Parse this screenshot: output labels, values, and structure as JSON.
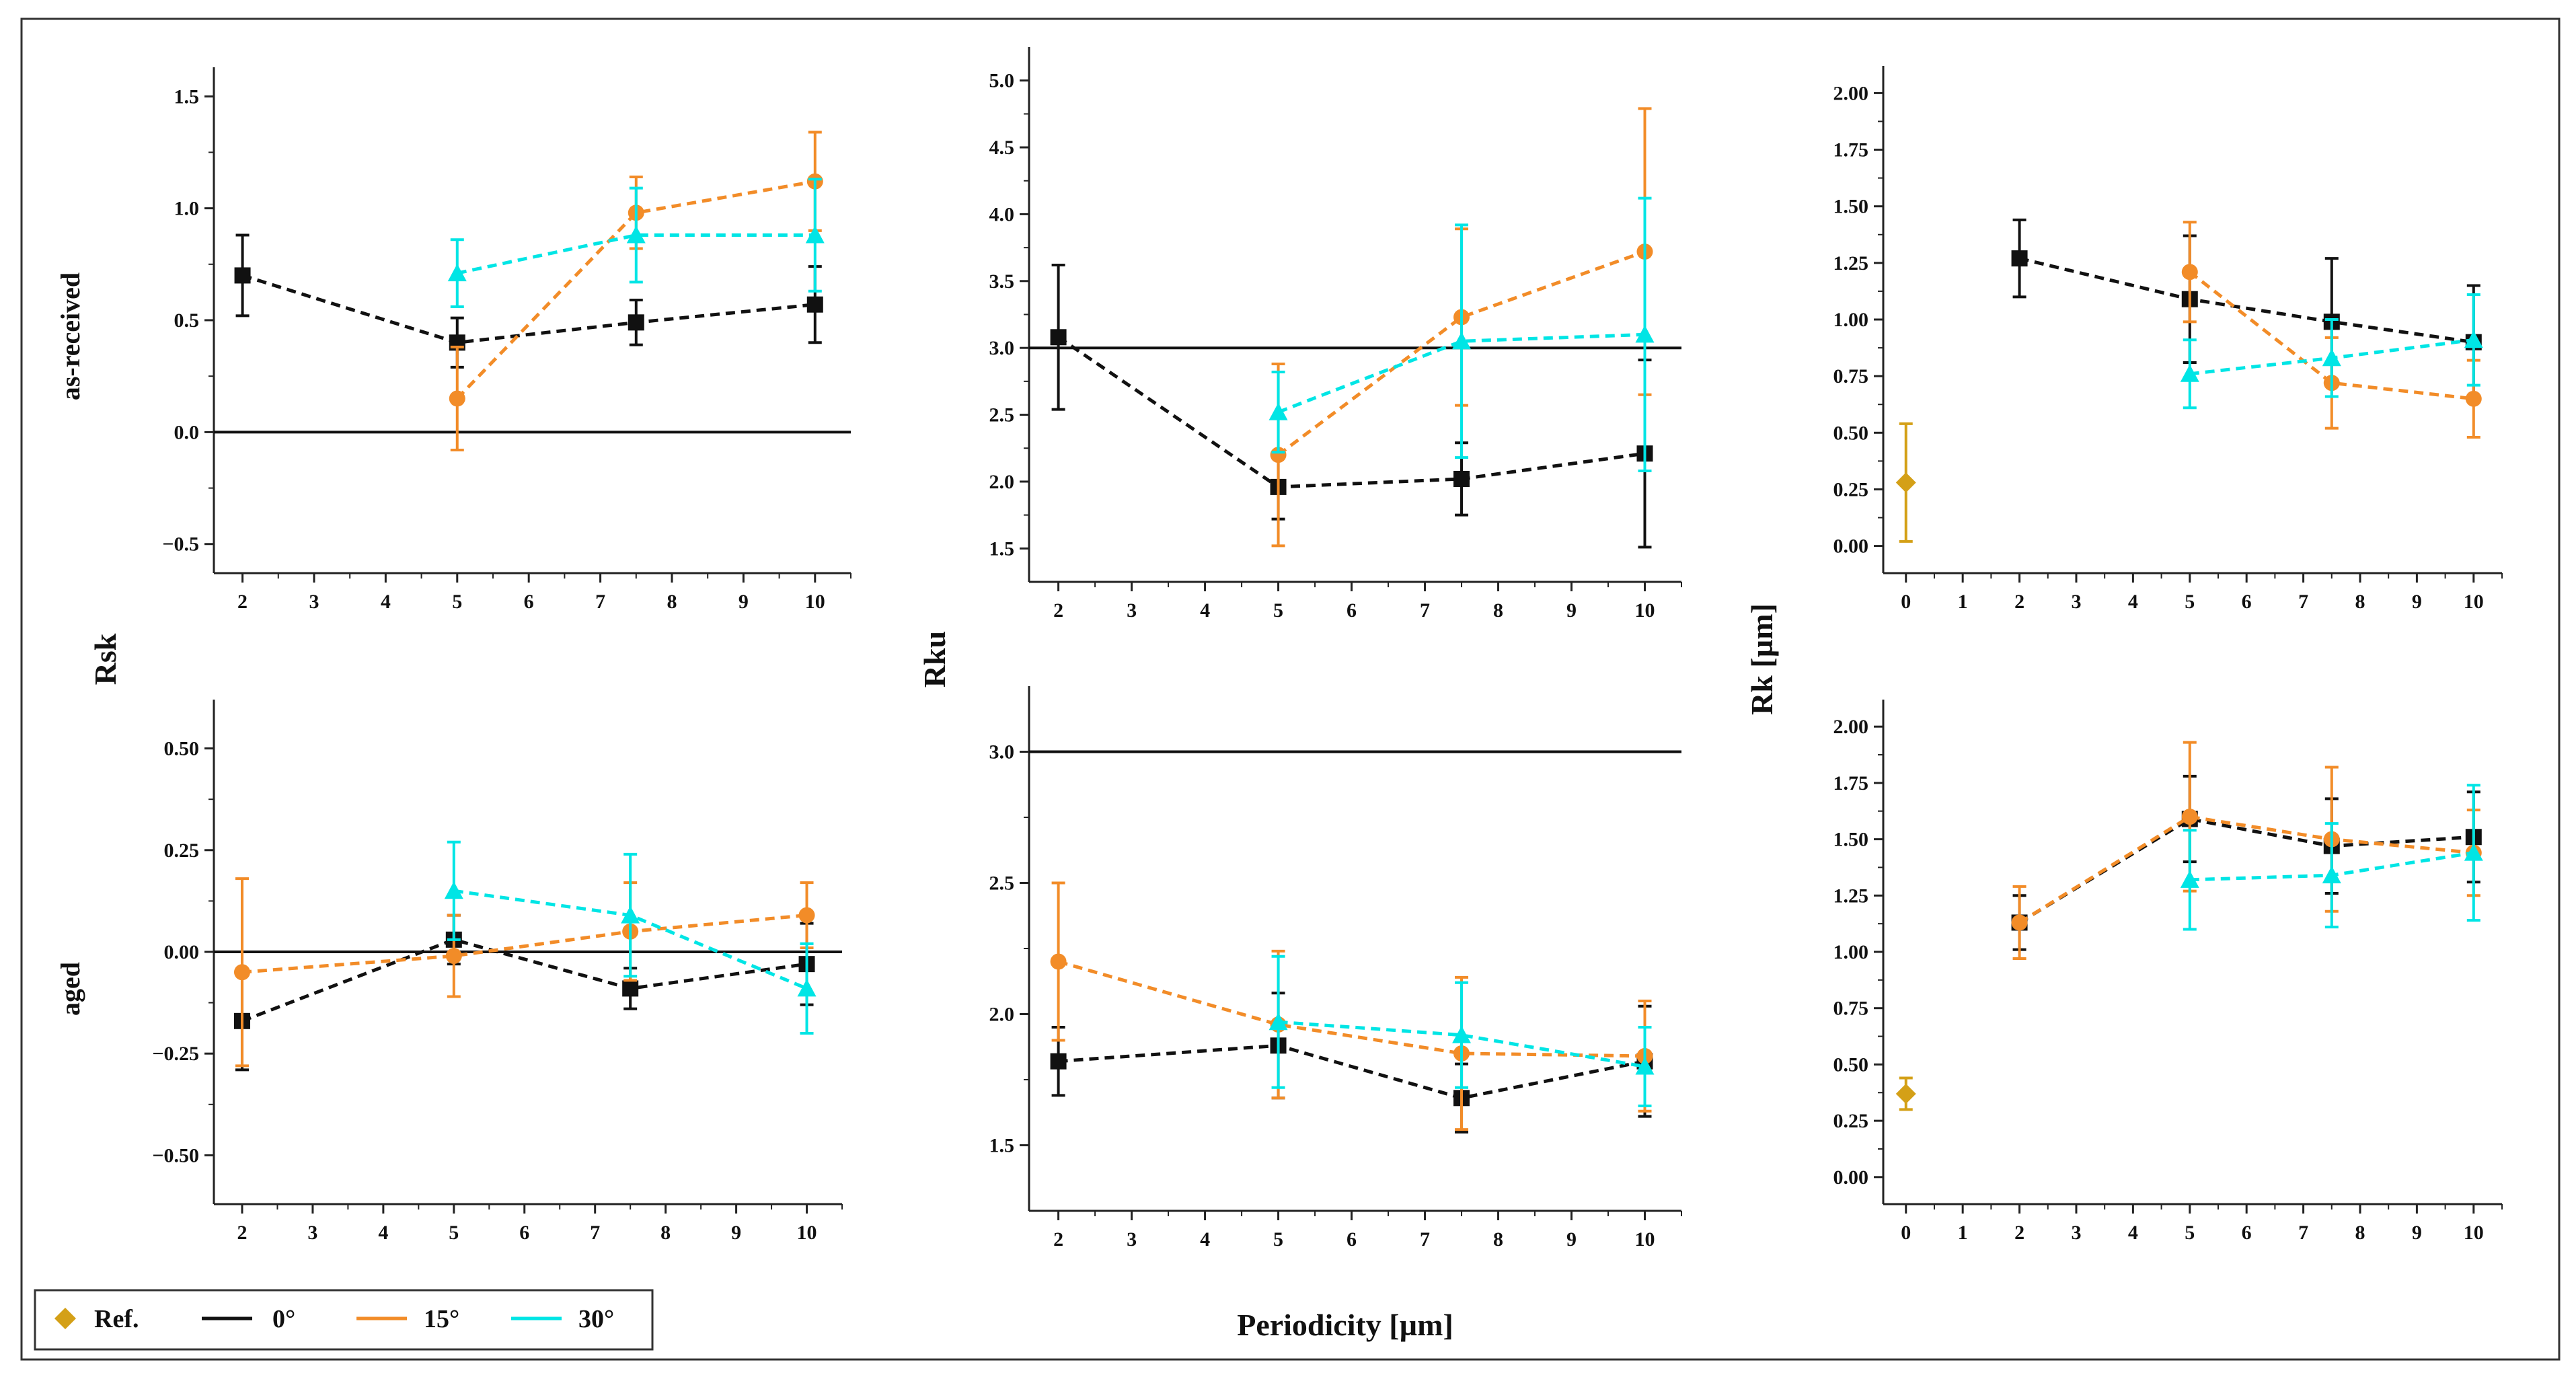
{
  "figure": {
    "shared_xlabel": "Periodicity [µm]",
    "row_labels": [
      "as-received",
      "aged"
    ],
    "column_ylabels": [
      "Rsk",
      "Rku",
      "Rk [µm]"
    ]
  },
  "colors": {
    "ref": "#D4A017",
    "0°": "#111111",
    "15°": "#F28C28",
    "30°": "#00E5E5"
  },
  "legend": {
    "entries": [
      {
        "key": "ref",
        "label": "Ref.",
        "marker": "diamond"
      },
      {
        "key": "0°",
        "label": "0°",
        "marker": "line"
      },
      {
        "key": "15°",
        "label": "15°",
        "marker": "line"
      },
      {
        "key": "30°",
        "label": "30°",
        "marker": "line"
      }
    ]
  },
  "chart_data": [
    {
      "id": "rsk-as-received",
      "type": "line",
      "xlim": [
        1.6,
        10.5
      ],
      "ylim": [
        -0.63,
        1.63
      ],
      "xticks": [
        2,
        3,
        4,
        5,
        6,
        7,
        8,
        9,
        10
      ],
      "xtick_labels": [
        "2",
        "3",
        "4",
        "5",
        "6",
        "7",
        "8",
        "9",
        "10"
      ],
      "yticks": [
        -0.5,
        0.0,
        0.5,
        1.0,
        1.5
      ],
      "ytick_labels": [
        "−0.5",
        "0.0",
        "0.5",
        "1.0",
        "1.5"
      ],
      "reference_line": 0.0,
      "series": [
        {
          "name": "0°",
          "marker": "square",
          "x": [
            2,
            5,
            7.5,
            10
          ],
          "y": [
            0.7,
            0.4,
            0.49,
            0.57
          ],
          "err": [
            0.18,
            0.11,
            0.1,
            0.17
          ]
        },
        {
          "name": "15°",
          "marker": "circle",
          "x": [
            5,
            7.5,
            10
          ],
          "y": [
            0.15,
            0.98,
            1.12
          ],
          "err": [
            0.23,
            0.16,
            0.22
          ]
        },
        {
          "name": "30°",
          "marker": "triangle",
          "x": [
            5,
            7.5,
            10
          ],
          "y": [
            0.71,
            0.88,
            0.88
          ],
          "err": [
            0.15,
            0.21,
            0.25
          ]
        }
      ]
    },
    {
      "id": "rku-as-received",
      "type": "line",
      "xlim": [
        1.6,
        10.5
      ],
      "ylim": [
        1.25,
        5.25
      ],
      "xticks": [
        2,
        3,
        4,
        5,
        6,
        7,
        8,
        9,
        10
      ],
      "xtick_labels": [
        "2",
        "3",
        "4",
        "5",
        "6",
        "7",
        "8",
        "9",
        "10"
      ],
      "yticks": [
        1.5,
        2.0,
        2.5,
        3.0,
        3.5,
        4.0,
        4.5,
        5.0
      ],
      "ytick_labels": [
        "1.5",
        "2.0",
        "2.5",
        "3.0",
        "3.5",
        "4.0",
        "4.5",
        "5.0"
      ],
      "reference_line": 3.0,
      "series": [
        {
          "name": "0°",
          "marker": "square",
          "x": [
            2,
            5,
            7.5,
            10
          ],
          "y": [
            3.08,
            1.96,
            2.02,
            2.21
          ],
          "err": [
            0.54,
            0.24,
            0.27,
            0.7
          ]
        },
        {
          "name": "15°",
          "marker": "circle",
          "x": [
            5,
            7.5,
            10
          ],
          "y": [
            2.2,
            3.23,
            3.72
          ],
          "err": [
            0.68,
            0.66,
            1.07
          ]
        },
        {
          "name": "30°",
          "marker": "triangle",
          "x": [
            5,
            7.5,
            10
          ],
          "y": [
            2.52,
            3.05,
            3.1
          ],
          "err": [
            0.3,
            0.87,
            1.02
          ]
        }
      ]
    },
    {
      "id": "rk-as-received",
      "type": "line",
      "xlim": [
        -0.4,
        10.5
      ],
      "ylim": [
        -0.12,
        2.12
      ],
      "xticks": [
        0,
        1,
        2,
        3,
        4,
        5,
        6,
        7,
        8,
        9,
        10
      ],
      "xtick_labels": [
        "0",
        "1",
        "2",
        "3",
        "4",
        "5",
        "6",
        "7",
        "8",
        "9",
        "10"
      ],
      "yticks": [
        0.0,
        0.25,
        0.5,
        0.75,
        1.0,
        1.25,
        1.5,
        1.75,
        2.0
      ],
      "ytick_labels": [
        "0.00",
        "0.25",
        "0.50",
        "0.75",
        "1.00",
        "1.25",
        "1.50",
        "1.75",
        "2.00"
      ],
      "series": [
        {
          "name": "Ref.",
          "marker": "diamond",
          "x": [
            0
          ],
          "y": [
            0.28
          ],
          "err": [
            0.26
          ]
        },
        {
          "name": "0°",
          "marker": "square",
          "x": [
            2,
            5,
            7.5,
            10
          ],
          "y": [
            1.27,
            1.09,
            0.99,
            0.9
          ],
          "err": [
            0.17,
            0.28,
            0.28,
            0.25
          ]
        },
        {
          "name": "15°",
          "marker": "circle",
          "x": [
            5,
            7.5,
            10
          ],
          "y": [
            1.21,
            0.72,
            0.65
          ],
          "err": [
            0.22,
            0.2,
            0.17
          ]
        },
        {
          "name": "30°",
          "marker": "triangle",
          "x": [
            5,
            7.5,
            10
          ],
          "y": [
            0.76,
            0.83,
            0.91
          ],
          "err": [
            0.15,
            0.17,
            0.2
          ]
        }
      ]
    },
    {
      "id": "rsk-aged",
      "type": "line",
      "xlim": [
        1.6,
        10.5
      ],
      "ylim": [
        -0.62,
        0.62
      ],
      "xticks": [
        2,
        3,
        4,
        5,
        6,
        7,
        8,
        9,
        10
      ],
      "xtick_labels": [
        "2",
        "3",
        "4",
        "5",
        "6",
        "7",
        "8",
        "9",
        "10"
      ],
      "yticks": [
        -0.5,
        -0.25,
        0.0,
        0.25,
        0.5
      ],
      "ytick_labels": [
        "−0.50",
        "−0.25",
        "0.00",
        "0.25",
        "0.50"
      ],
      "reference_line": 0.0,
      "series": [
        {
          "name": "0°",
          "marker": "square",
          "x": [
            2,
            5,
            7.5,
            10
          ],
          "y": [
            -0.17,
            0.03,
            -0.09,
            -0.03
          ],
          "err": [
            0.12,
            0.06,
            0.05,
            0.1
          ]
        },
        {
          "name": "15°",
          "marker": "circle",
          "x": [
            2,
            5,
            7.5,
            10
          ],
          "y": [
            -0.05,
            -0.01,
            0.05,
            0.09
          ],
          "err": [
            0.23,
            0.1,
            0.12,
            0.08
          ]
        },
        {
          "name": "30°",
          "marker": "triangle",
          "x": [
            5,
            7.5,
            10
          ],
          "y": [
            0.15,
            0.09,
            -0.09
          ],
          "err": [
            0.12,
            0.15,
            0.11
          ]
        }
      ]
    },
    {
      "id": "rku-aged",
      "type": "line",
      "xlim": [
        1.6,
        10.5
      ],
      "ylim": [
        1.25,
        3.25
      ],
      "xticks": [
        2,
        3,
        4,
        5,
        6,
        7,
        8,
        9,
        10
      ],
      "xtick_labels": [
        "2",
        "3",
        "4",
        "5",
        "6",
        "7",
        "8",
        "9",
        "10"
      ],
      "yticks": [
        1.5,
        2.0,
        2.5,
        3.0
      ],
      "ytick_labels": [
        "1.5",
        "2.0",
        "2.5",
        "3.0"
      ],
      "reference_line": 3.0,
      "series": [
        {
          "name": "0°",
          "marker": "square",
          "x": [
            2,
            5,
            7.5,
            10
          ],
          "y": [
            1.82,
            1.88,
            1.68,
            1.82
          ],
          "err": [
            0.13,
            0.2,
            0.13,
            0.21
          ]
        },
        {
          "name": "15°",
          "marker": "circle",
          "x": [
            2,
            5,
            7.5,
            10
          ],
          "y": [
            2.2,
            1.96,
            1.85,
            1.84
          ],
          "err": [
            0.3,
            0.28,
            0.29,
            0.21
          ]
        },
        {
          "name": "30°",
          "marker": "triangle",
          "x": [
            5,
            7.5,
            10
          ],
          "y": [
            1.97,
            1.92,
            1.8
          ],
          "err": [
            0.25,
            0.2,
            0.15
          ]
        }
      ]
    },
    {
      "id": "rk-aged",
      "type": "line",
      "xlim": [
        -0.4,
        10.5
      ],
      "ylim": [
        -0.12,
        2.12
      ],
      "xticks": [
        0,
        1,
        2,
        3,
        4,
        5,
        6,
        7,
        8,
        9,
        10
      ],
      "xtick_labels": [
        "0",
        "1",
        "2",
        "3",
        "4",
        "5",
        "6",
        "7",
        "8",
        "9",
        "10"
      ],
      "yticks": [
        0.0,
        0.25,
        0.5,
        0.75,
        1.0,
        1.25,
        1.5,
        1.75,
        2.0
      ],
      "ytick_labels": [
        "0.00",
        "0.25",
        "0.50",
        "0.75",
        "1.00",
        "1.25",
        "1.50",
        "1.75",
        "2.00"
      ],
      "series": [
        {
          "name": "Ref.",
          "marker": "diamond",
          "x": [
            0
          ],
          "y": [
            0.37
          ],
          "err": [
            0.07
          ]
        },
        {
          "name": "0°",
          "marker": "square",
          "x": [
            2,
            5,
            7.5,
            10
          ],
          "y": [
            1.13,
            1.59,
            1.47,
            1.51
          ],
          "err": [
            0.12,
            0.19,
            0.21,
            0.2
          ]
        },
        {
          "name": "15°",
          "marker": "circle",
          "x": [
            2,
            5,
            7.5,
            10
          ],
          "y": [
            1.13,
            1.6,
            1.5,
            1.44
          ],
          "err": [
            0.16,
            0.33,
            0.32,
            0.19
          ]
        },
        {
          "name": "30°",
          "marker": "triangle",
          "x": [
            5,
            7.5,
            10
          ],
          "y": [
            1.32,
            1.34,
            1.44
          ],
          "err": [
            0.22,
            0.23,
            0.3
          ]
        }
      ]
    }
  ]
}
